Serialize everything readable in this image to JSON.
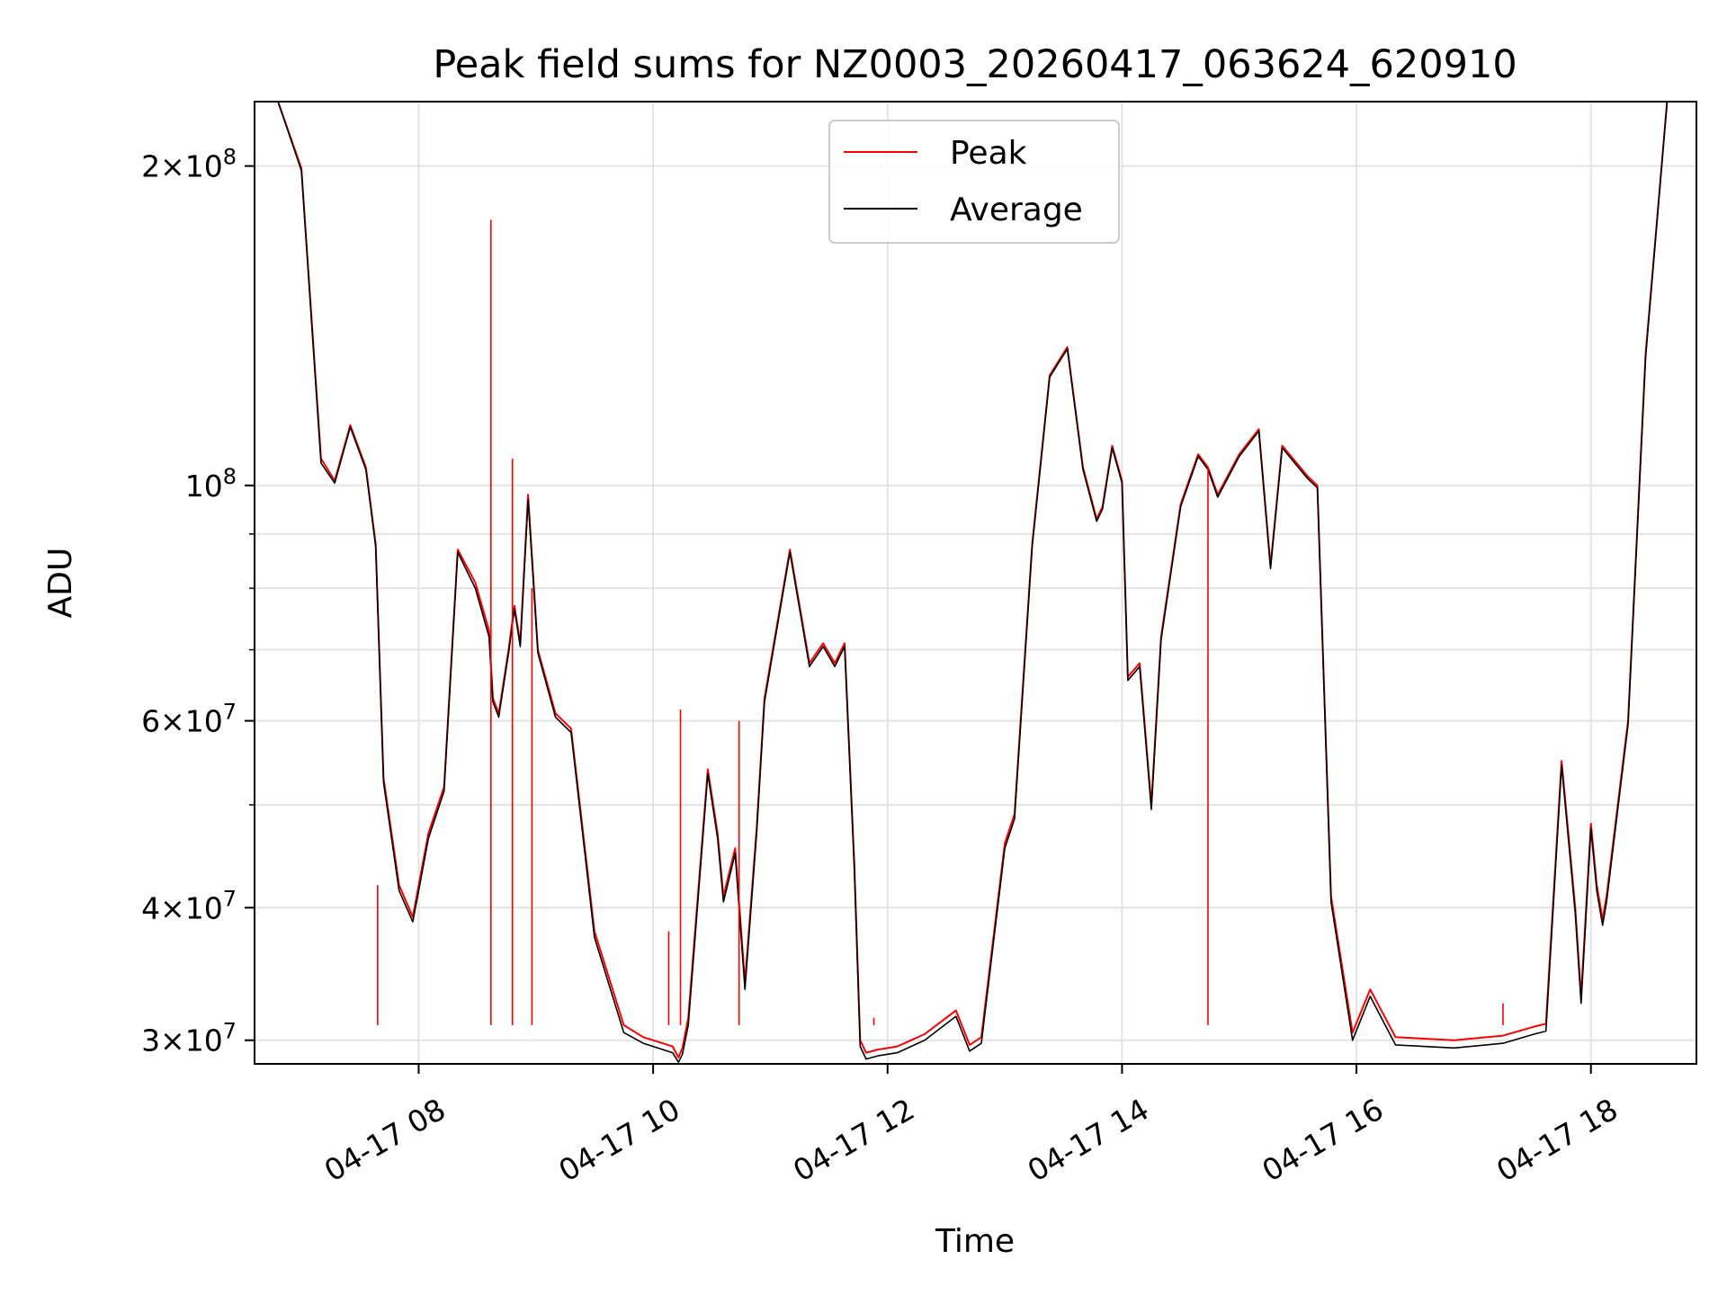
{
  "chart_data": {
    "type": "line",
    "title": "Peak field sums for NZ0003_20260417_063624_620910",
    "xlabel": "Time",
    "ylabel": "ADU",
    "y_scale": "log",
    "ylim": [
      28500000,
      230000000
    ],
    "xlim": [
      "04-17 06:36",
      "04-17 18:54"
    ],
    "x_ticks": [
      "04-17 08",
      "04-17 10",
      "04-17 12",
      "04-17 14",
      "04-17 16",
      "04-17 18"
    ],
    "x_tick_times": [
      "04-17 08:00",
      "04-17 10:00",
      "04-17 12:00",
      "04-17 14:00",
      "04-17 16:00",
      "04-17 18:00"
    ],
    "y_ticks_major": [
      {
        "value": 200000000,
        "mant": "2",
        "exp": "8"
      },
      {
        "value": 100000000,
        "mant": "",
        "exp": "8"
      },
      {
        "value": 60000000,
        "mant": "6",
        "exp": "7"
      },
      {
        "value": 40000000,
        "mant": "4",
        "exp": "7"
      },
      {
        "value": 30000000,
        "mant": "3",
        "exp": "7"
      }
    ],
    "y_ticks_minor": [
      90000000,
      80000000,
      70000000,
      50000000
    ],
    "grid": true,
    "legend_position": "top-center",
    "series": [
      {
        "name": "Peak",
        "color": "#ff0000",
        "x": [
          "04-17 06:48",
          "04-17 07:00",
          "04-17 07:10",
          "04-17 07:17",
          "04-17 07:25",
          "04-17 07:33",
          "04-17 07:38",
          "04-17 07:42",
          "04-17 07:50",
          "04-17 07:57",
          "04-17 08:00",
          "04-17 08:05",
          "04-17 08:13",
          "04-17 08:20",
          "04-17 08:29",
          "04-17 08:36",
          "04-17 08:38",
          "04-17 08:41",
          "04-17 08:46",
          "04-17 08:49",
          "04-17 08:52",
          "04-17 08:56",
          "04-17 09:01",
          "04-17 09:10",
          "04-17 09:18",
          "04-17 09:30",
          "04-17 09:45",
          "04-17 09:55",
          "04-17 10:10",
          "04-17 10:13",
          "04-17 10:15",
          "04-17 10:18",
          "04-17 10:28",
          "04-17 10:33",
          "04-17 10:36",
          "04-17 10:42",
          "04-17 10:47",
          "04-17 10:53",
          "04-17 10:57",
          "04-17 11:10",
          "04-17 11:20",
          "04-17 11:27",
          "04-17 11:33",
          "04-17 11:38",
          "04-17 11:43",
          "04-17 11:46",
          "04-17 11:49",
          "04-17 11:55",
          "04-17 12:05",
          "04-17 12:19",
          "04-17 12:35",
          "04-17 12:42",
          "04-17 12:48",
          "04-17 13:00",
          "04-17 13:05",
          "04-17 13:14",
          "04-17 13:23",
          "04-17 13:32",
          "04-17 13:40",
          "04-17 13:47",
          "04-17 13:50",
          "04-17 13:55",
          "04-17 14:00",
          "04-17 14:03",
          "04-17 14:09",
          "04-17 14:15",
          "04-17 14:20",
          "04-17 14:30",
          "04-17 14:39",
          "04-17 14:44",
          "04-17 14:49",
          "04-17 15:00",
          "04-17 15:10",
          "04-17 15:16",
          "04-17 15:22",
          "04-17 15:35",
          "04-17 15:40",
          "04-17 15:47",
          "04-17 15:58",
          "04-17 16:07",
          "04-17 16:20",
          "04-17 16:50",
          "04-17 17:15",
          "04-17 17:31",
          "04-17 17:37",
          "04-17 17:45",
          "04-17 17:52",
          "04-17 17:55",
          "04-17 18:00",
          "04-17 18:03",
          "04-17 18:06",
          "04-17 18:08",
          "04-17 18:19",
          "04-17 18:28",
          "04-17 18:39"
        ],
        "y": [
          230000000,
          199000000,
          106000000,
          101000000,
          114000000,
          104000000,
          88000000,
          53000000,
          42000000,
          39200000,
          42000000,
          47000000,
          52000000,
          87000000,
          81000000,
          73000000,
          63000000,
          61000000,
          70000000,
          77000000,
          71000000,
          98000000,
          70000000,
          61000000,
          59000000,
          38000000,
          31000000,
          30200000,
          29600000,
          28900000,
          29500000,
          31500000,
          54000000,
          47000000,
          41000000,
          45500000,
          34000000,
          47500000,
          63000000,
          87000000,
          68000000,
          71000000,
          68000000,
          71000000,
          44000000,
          30000000,
          29200000,
          29400000,
          29600000,
          30400000,
          32000000,
          29700000,
          30200000,
          46000000,
          49000000,
          88000000,
          127000000,
          135000000,
          104000000,
          93000000,
          95500000,
          109000000,
          101000000,
          66000000,
          68000000,
          50000000,
          72000000,
          96000000,
          107000000,
          104000000,
          98000000,
          107000000,
          113000000,
          84000000,
          109000000,
          102000000,
          100000000,
          41000000,
          30500000,
          33500000,
          30200000,
          30000000,
          30300000,
          30900000,
          31100000,
          55000000,
          40000000,
          33000000,
          48000000,
          42000000,
          39000000,
          41000000,
          60000000,
          133000000,
          230000000
        ]
      },
      {
        "name": "Average",
        "color": "#000000",
        "x": [
          "04-17 06:48",
          "04-17 07:00",
          "04-17 07:10",
          "04-17 07:17",
          "04-17 07:25",
          "04-17 07:33",
          "04-17 07:38",
          "04-17 07:42",
          "04-17 07:50",
          "04-17 07:57",
          "04-17 08:00",
          "04-17 08:05",
          "04-17 08:13",
          "04-17 08:20",
          "04-17 08:29",
          "04-17 08:36",
          "04-17 08:38",
          "04-17 08:41",
          "04-17 08:46",
          "04-17 08:49",
          "04-17 08:52",
          "04-17 08:56",
          "04-17 09:01",
          "04-17 09:10",
          "04-17 09:18",
          "04-17 09:30",
          "04-17 09:45",
          "04-17 09:55",
          "04-17 10:10",
          "04-17 10:13",
          "04-17 10:15",
          "04-17 10:18",
          "04-17 10:28",
          "04-17 10:33",
          "04-17 10:36",
          "04-17 10:42",
          "04-17 10:47",
          "04-17 10:53",
          "04-17 10:57",
          "04-17 11:10",
          "04-17 11:20",
          "04-17 11:27",
          "04-17 11:33",
          "04-17 11:38",
          "04-17 11:43",
          "04-17 11:46",
          "04-17 11:49",
          "04-17 11:55",
          "04-17 12:05",
          "04-17 12:19",
          "04-17 12:35",
          "04-17 12:42",
          "04-17 12:48",
          "04-17 13:00",
          "04-17 13:05",
          "04-17 13:14",
          "04-17 13:23",
          "04-17 13:32",
          "04-17 13:40",
          "04-17 13:47",
          "04-17 13:50",
          "04-17 13:55",
          "04-17 14:00",
          "04-17 14:03",
          "04-17 14:09",
          "04-17 14:15",
          "04-17 14:20",
          "04-17 14:30",
          "04-17 14:39",
          "04-17 14:44",
          "04-17 14:49",
          "04-17 15:00",
          "04-17 15:10",
          "04-17 15:16",
          "04-17 15:22",
          "04-17 15:35",
          "04-17 15:40",
          "04-17 15:47",
          "04-17 15:58",
          "04-17 16:07",
          "04-17 16:20",
          "04-17 16:50",
          "04-17 17:15",
          "04-17 17:31",
          "04-17 17:37",
          "04-17 17:45",
          "04-17 17:52",
          "04-17 17:55",
          "04-17 18:00",
          "04-17 18:03",
          "04-17 18:06",
          "04-17 18:08",
          "04-17 18:19",
          "04-17 18:28",
          "04-17 18:39"
        ],
        "y": [
          230000000,
          198000000,
          105000000,
          100500000,
          113500000,
          103500000,
          87500000,
          52500000,
          41500000,
          38800000,
          41500000,
          46500000,
          51500000,
          86500000,
          80000000,
          72000000,
          62500000,
          60500000,
          69500000,
          76500000,
          70500000,
          97000000,
          69500000,
          60500000,
          58500000,
          37500000,
          30500000,
          29800000,
          29200000,
          28600000,
          29100000,
          31000000,
          53500000,
          46500000,
          40500000,
          45000000,
          33500000,
          47000000,
          62500000,
          86500000,
          67500000,
          70500000,
          67500000,
          70500000,
          43500000,
          29600000,
          28800000,
          29000000,
          29200000,
          30000000,
          31600000,
          29300000,
          29800000,
          45500000,
          48500000,
          87500000,
          126500000,
          134500000,
          103500000,
          92500000,
          95000000,
          108500000,
          100500000,
          65500000,
          67500000,
          49500000,
          71500000,
          95500000,
          106500000,
          103500000,
          97500000,
          106500000,
          112500000,
          83500000,
          108500000,
          101500000,
          99500000,
          40500000,
          30000000,
          33000000,
          29700000,
          29500000,
          29800000,
          30400000,
          30600000,
          54500000,
          39500000,
          32500000,
          47500000,
          41500000,
          38500000,
          40500000,
          59500000,
          132000000,
          230000000
        ]
      }
    ],
    "spikes": [
      {
        "x": "04-17 07:39",
        "y": 42000000
      },
      {
        "x": "04-17 08:37",
        "y": 178000000
      },
      {
        "x": "04-17 08:48",
        "y": 106000000
      },
      {
        "x": "04-17 08:58",
        "y": 80000000
      },
      {
        "x": "04-17 10:08",
        "y": 38000000
      },
      {
        "x": "04-17 10:14",
        "y": 61500000
      },
      {
        "x": "04-17 10:44",
        "y": 60000000
      },
      {
        "x": "04-17 11:49",
        "y": 31000000
      },
      {
        "x": "04-17 11:53",
        "y": 31500000
      },
      {
        "x": "04-17 11:58",
        "y": 31000000
      },
      {
        "x": "04-17 14:44",
        "y": 104000000
      },
      {
        "x": "04-17 17:15",
        "y": 32500000
      }
    ]
  }
}
